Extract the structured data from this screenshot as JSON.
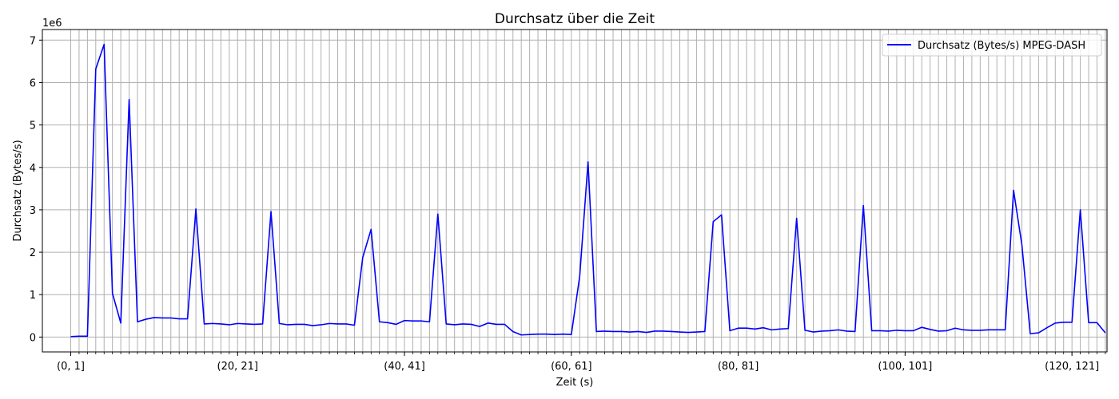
{
  "chart_data": {
    "type": "line",
    "title": "Durchsatz über die Zeit",
    "xlabel": "Zeit (s)",
    "ylabel": "Durchsatz (Bytes/s)",
    "y_offset_label": "1e6",
    "y_scale_factor": 1000000,
    "ylim": [
      -0.35,
      7.25
    ],
    "yticks": [
      0,
      1,
      2,
      3,
      4,
      5,
      6,
      7
    ],
    "xlim": [
      -3.4,
      124.2
    ],
    "xtick_labels": [
      {
        "x": 0,
        "label": "(0, 1]"
      },
      {
        "x": 20,
        "label": "(20, 21]"
      },
      {
        "x": 40,
        "label": "(40, 41]"
      },
      {
        "x": 60,
        "label": "(60, 61]"
      },
      {
        "x": 80,
        "label": "(80, 81]"
      },
      {
        "x": 100,
        "label": "(100, 101]"
      },
      {
        "x": 120,
        "label": "(120, 121]"
      }
    ],
    "grid": true,
    "legend_position": "top-right",
    "series": [
      {
        "name": "Durchsatz (Bytes/s) MPEG-DASH",
        "color": "#0000ff",
        "values": [
          0.01,
          0.02,
          0.02,
          6.32,
          6.9,
          1.03,
          0.33,
          5.6,
          0.36,
          0.42,
          0.46,
          0.45,
          0.45,
          0.43,
          0.43,
          3.02,
          0.31,
          0.32,
          0.31,
          0.29,
          0.32,
          0.31,
          0.3,
          0.31,
          2.96,
          0.32,
          0.29,
          0.3,
          0.3,
          0.27,
          0.29,
          0.32,
          0.31,
          0.31,
          0.28,
          1.88,
          2.54,
          0.36,
          0.34,
          0.3,
          0.39,
          0.38,
          0.38,
          0.36,
          2.9,
          0.31,
          0.29,
          0.31,
          0.3,
          0.25,
          0.33,
          0.3,
          0.3,
          0.13,
          0.05,
          0.06,
          0.07,
          0.07,
          0.06,
          0.07,
          0.06,
          1.43,
          4.13,
          0.13,
          0.14,
          0.13,
          0.13,
          0.12,
          0.13,
          0.11,
          0.14,
          0.14,
          0.13,
          0.12,
          0.11,
          0.12,
          0.13,
          2.72,
          2.88,
          0.15,
          0.21,
          0.21,
          0.19,
          0.22,
          0.17,
          0.19,
          0.2,
          2.8,
          0.16,
          0.12,
          0.14,
          0.15,
          0.17,
          0.14,
          0.13,
          3.1,
          0.15,
          0.15,
          0.14,
          0.16,
          0.15,
          0.15,
          0.23,
          0.18,
          0.14,
          0.15,
          0.21,
          0.17,
          0.16,
          0.16,
          0.17,
          0.17,
          0.17,
          3.46,
          2.17,
          0.08,
          0.1,
          0.22,
          0.33,
          0.35,
          0.35,
          3.0,
          0.34,
          0.34,
          0.1
        ]
      }
    ]
  }
}
